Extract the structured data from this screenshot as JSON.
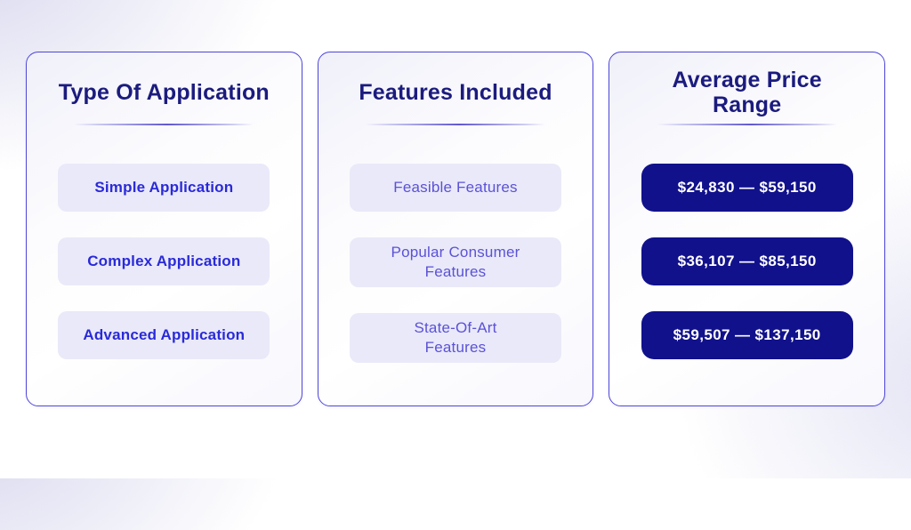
{
  "columns": [
    {
      "title": "Type Of Application",
      "items": [
        "Simple Application",
        "Complex Application",
        "Advanced Application"
      ]
    },
    {
      "title": "Features Included",
      "items": [
        "Feasible Features",
        "Popular Consumer Features",
        "State-Of-Art Features"
      ]
    },
    {
      "title": "Average Price Range",
      "items": [
        "$24,830 — $59,150",
        "$36,107 — $85,150",
        "$59,507 — $137,150"
      ]
    }
  ],
  "colors": {
    "title_text": "#1b1b7e",
    "card_border": "#4e46d8",
    "pill_light_bg": "#e9e9f9",
    "pill_dark_bg": "#11118c",
    "type_item_text": "#2a2ad9",
    "feature_item_text": "#5b52d6",
    "price_item_text": "#ffffff"
  }
}
